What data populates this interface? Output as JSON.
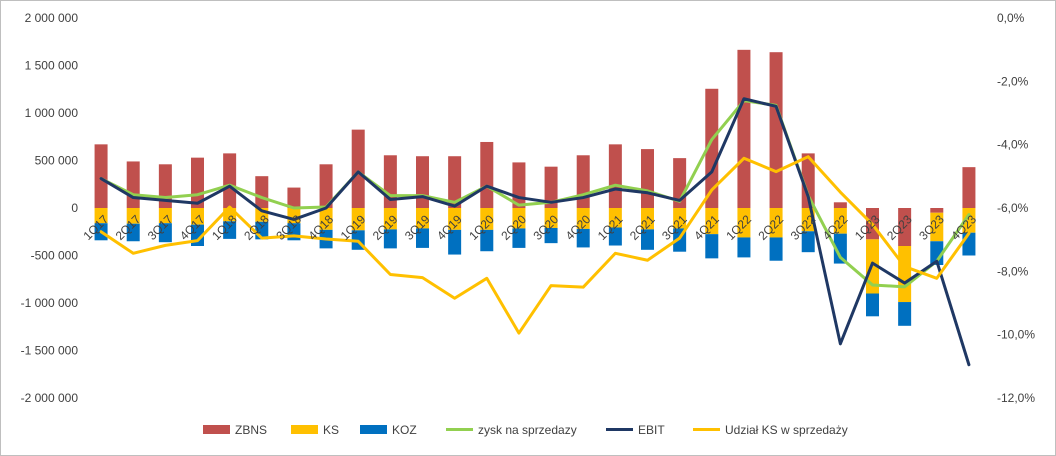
{
  "chart_data": {
    "type": "bar",
    "subtype": "stacked-bar-with-lines",
    "categories": [
      "1Q17",
      "2Q17",
      "3Q17",
      "4Q17",
      "1Q18",
      "2Q18",
      "3Q18",
      "4Q18",
      "1Q19",
      "2Q19",
      "3Q19",
      "4Q19",
      "1Q20",
      "2Q20",
      "3Q20",
      "4Q20",
      "1Q21",
      "2Q21",
      "3Q21",
      "4Q21",
      "1Q22",
      "2Q22",
      "3Q22",
      "4Q22",
      "1Q23",
      "2Q23",
      "3Q23",
      "4Q23"
    ],
    "category_labels": [
      "1Q17",
      "2Q17",
      "3Q17",
      "4Q17",
      "1Q18",
      "2Q18",
      "3Q18",
      "4Q18",
      "1Q19",
      "2Q19",
      "3Q19",
      "4Q19",
      "1Q20",
      "2Q20",
      "3Q20",
      "4Q20",
      "1Q21",
      "2Q21",
      "3Q21",
      "4Q21",
      "1Q22",
      "2Q22",
      "3Q22",
      "4Q22",
      "1Q23",
      "2Q23",
      "3Q23",
      "4Q23"
    ],
    "ylim": [
      -2000000,
      2000000
    ],
    "y_ticks": [
      2000000,
      1500000,
      1000000,
      500000,
      0,
      -500000,
      -1000000,
      -1500000,
      -2000000
    ],
    "y_tick_labels": [
      "2 000 000",
      "1 500 000",
      "1 000 000",
      "500 000",
      "0",
      "-500 000",
      "-1 000 000",
      "-1 500 000",
      "-2 000 000"
    ],
    "y2lim": [
      -0.12,
      0.0
    ],
    "y2_ticks": [
      0.0,
      -0.02,
      -0.04,
      -0.06,
      -0.08,
      -0.1,
      -0.12
    ],
    "y2_tick_labels": [
      "0,0%",
      "-2,0%",
      "-4,0%",
      "-6,0%",
      "-8,0%",
      "-10,0%",
      "-12,0%"
    ],
    "grid": false,
    "legend_position": "bottom",
    "bar_series": [
      {
        "name": "ZBNS",
        "color": "#c0504d",
        "values": [
          670000,
          490000,
          460000,
          530000,
          575000,
          335000,
          215000,
          460000,
          825000,
          555000,
          545000,
          545000,
          695000,
          480000,
          435000,
          555000,
          670000,
          620000,
          525000,
          1255000,
          1665000,
          1640000,
          575000,
          60000,
          -330000,
          -400000,
          -50000,
          430000
        ]
      },
      {
        "name": "KS",
        "color": "#ffc000",
        "values": [
          -160000,
          -165000,
          -160000,
          -175000,
          -140000,
          -145000,
          -160000,
          -230000,
          -235000,
          -225000,
          -215000,
          -230000,
          -230000,
          -215000,
          -210000,
          -220000,
          -205000,
          -225000,
          -215000,
          -275000,
          -310000,
          -310000,
          -245000,
          -270000,
          -570000,
          -590000,
          -300000,
          -260000
        ]
      },
      {
        "name": "KOZ",
        "color": "#0070c0",
        "values": [
          -180000,
          -185000,
          -200000,
          -225000,
          -185000,
          -185000,
          -180000,
          -195000,
          -205000,
          -200000,
          -205000,
          -260000,
          -225000,
          -205000,
          -160000,
          -195000,
          -190000,
          -215000,
          -245000,
          -255000,
          -210000,
          -245000,
          -220000,
          -315000,
          -240000,
          -250000,
          -250000,
          -240000
        ]
      }
    ],
    "line_series": [
      {
        "name": "zysk na sprzedaży",
        "color": "#92d050",
        "axis": "left",
        "values": [
          310000,
          140000,
          110000,
          140000,
          240000,
          110000,
          0,
          10000,
          380000,
          130000,
          130000,
          60000,
          230000,
          30000,
          60000,
          140000,
          240000,
          180000,
          70000,
          720000,
          1130000,
          1080000,
          130000,
          -520000,
          -810000,
          -830000,
          -560000,
          -70000
        ]
      },
      {
        "name": "EBIT",
        "color": "#1f3864",
        "axis": "left",
        "values": [
          310000,
          110000,
          80000,
          50000,
          230000,
          -30000,
          -120000,
          0,
          380000,
          90000,
          120000,
          20000,
          230000,
          110000,
          60000,
          110000,
          200000,
          160000,
          80000,
          380000,
          1150000,
          1070000,
          120000,
          -1430000,
          -580000,
          -790000,
          -560000,
          -1650000
        ]
      },
      {
        "name": "Udział KS w sprzedaży",
        "color": "#ffc000",
        "axis": "right",
        "values": [
          -0.0675,
          -0.0743,
          -0.0718,
          -0.0703,
          -0.0597,
          -0.0695,
          -0.0688,
          -0.0698,
          -0.0705,
          -0.081,
          -0.082,
          -0.0885,
          -0.0822,
          -0.0995,
          -0.0845,
          -0.085,
          -0.0743,
          -0.0765,
          -0.0695,
          -0.0543,
          -0.0443,
          -0.0485,
          -0.0438,
          -0.055,
          -0.0652,
          -0.0785,
          -0.0822,
          -0.068
        ]
      }
    ],
    "title": "",
    "xlabel": "",
    "ylabel": ""
  },
  "legend": {
    "items": [
      {
        "label": "ZBNS",
        "kind": "box",
        "color": "#c0504d"
      },
      {
        "label": "KS",
        "kind": "box",
        "color": "#ffc000"
      },
      {
        "label": "KOZ",
        "kind": "box",
        "color": "#0070c0"
      },
      {
        "label": "zysk na sprzedazy",
        "kind": "line",
        "color": "#92d050"
      },
      {
        "label": "EBIT",
        "kind": "line",
        "color": "#1f3864"
      },
      {
        "label": "Udział KS w sprzedaży",
        "kind": "line",
        "color": "#ffc000"
      }
    ]
  }
}
